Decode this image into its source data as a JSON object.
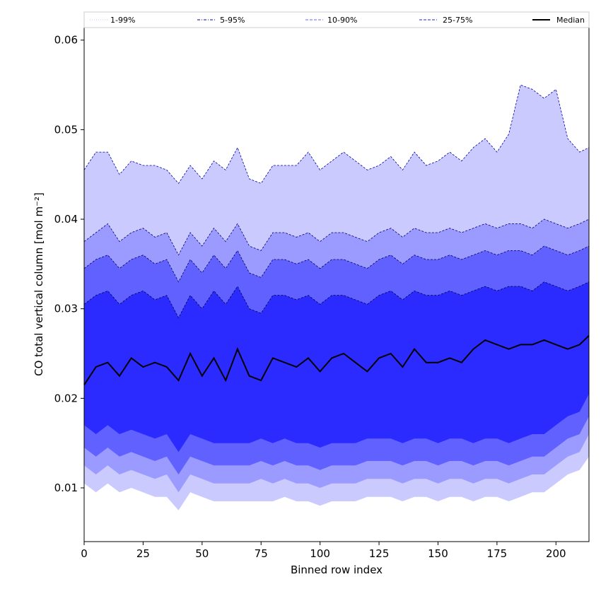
{
  "chart_data": {
    "type": "area",
    "title": "",
    "xlabel": "Binned row index",
    "ylabel": "CO total vertical column [mol m⁻²]",
    "xlim": [
      0,
      214
    ],
    "ylim": [
      0.004,
      0.0614
    ],
    "x_ticks": [
      0,
      25,
      50,
      75,
      100,
      125,
      150,
      175,
      200
    ],
    "y_ticks": [
      0.01,
      0.02,
      0.03,
      0.04,
      0.05,
      0.06
    ],
    "y_tick_labels": [
      "0.01",
      "0.02",
      "0.03",
      "0.04",
      "0.05",
      "0.06"
    ],
    "grid": false,
    "legend_position": "top",
    "x_points": [
      0,
      5,
      10,
      15,
      20,
      25,
      30,
      35,
      40,
      45,
      50,
      55,
      60,
      65,
      70,
      75,
      80,
      85,
      90,
      95,
      100,
      105,
      110,
      115,
      120,
      125,
      130,
      135,
      140,
      145,
      150,
      155,
      160,
      165,
      170,
      175,
      180,
      185,
      190,
      195,
      200,
      205,
      210,
      214
    ],
    "legend": [
      {
        "label": "1-99%",
        "color": "#c8c8ff",
        "style": "dotted"
      },
      {
        "label": "5-95%",
        "color": "#0000aa",
        "style": "dashdot"
      },
      {
        "label": "10-90%",
        "color": "#6666ff",
        "style": "dashed"
      },
      {
        "label": "25-75%",
        "color": "#2222dd",
        "style": "dashed"
      },
      {
        "label": "Median",
        "color": "#000000",
        "style": "solid"
      }
    ],
    "bands": [
      {
        "name": "1-99%",
        "fill": "#cacaff",
        "upper": [
          0.0455,
          0.0475,
          0.0475,
          0.045,
          0.0465,
          0.046,
          0.046,
          0.0455,
          0.044,
          0.046,
          0.0445,
          0.0465,
          0.0455,
          0.048,
          0.0445,
          0.044,
          0.046,
          0.046,
          0.046,
          0.0475,
          0.0455,
          0.0465,
          0.0475,
          0.0465,
          0.0455,
          0.046,
          0.047,
          0.0455,
          0.0475,
          0.046,
          0.0465,
          0.0475,
          0.0465,
          0.048,
          0.049,
          0.0475,
          0.0495,
          0.055,
          0.0545,
          0.0535,
          0.0545,
          0.049,
          0.0475,
          0.048
        ],
        "lower": [
          0.0105,
          0.0095,
          0.0105,
          0.0095,
          0.01,
          0.0095,
          0.009,
          0.009,
          0.0075,
          0.0095,
          0.009,
          0.0085,
          0.0085,
          0.0085,
          0.0085,
          0.0085,
          0.0085,
          0.009,
          0.0085,
          0.0085,
          0.008,
          0.0085,
          0.0085,
          0.0085,
          0.009,
          0.009,
          0.009,
          0.0085,
          0.009,
          0.009,
          0.0085,
          0.009,
          0.009,
          0.0085,
          0.009,
          0.009,
          0.0085,
          0.009,
          0.0095,
          0.0095,
          0.0105,
          0.0115,
          0.012,
          0.0135
        ]
      },
      {
        "name": "5-95%",
        "fill": "#9b9bff",
        "upper": [
          0.0375,
          0.0385,
          0.0395,
          0.0375,
          0.0385,
          0.039,
          0.038,
          0.0385,
          0.036,
          0.0385,
          0.037,
          0.039,
          0.0375,
          0.0395,
          0.037,
          0.0365,
          0.0385,
          0.0385,
          0.038,
          0.0385,
          0.0375,
          0.0385,
          0.0385,
          0.038,
          0.0375,
          0.0385,
          0.039,
          0.038,
          0.039,
          0.0385,
          0.0385,
          0.039,
          0.0385,
          0.039,
          0.0395,
          0.039,
          0.0395,
          0.0395,
          0.039,
          0.04,
          0.0395,
          0.039,
          0.0395,
          0.04
        ],
        "lower": [
          0.0125,
          0.0115,
          0.0125,
          0.0115,
          0.012,
          0.0115,
          0.011,
          0.0115,
          0.0095,
          0.0115,
          0.011,
          0.0105,
          0.0105,
          0.0105,
          0.0105,
          0.011,
          0.0105,
          0.011,
          0.0105,
          0.0105,
          0.01,
          0.0105,
          0.0105,
          0.0105,
          0.011,
          0.011,
          0.011,
          0.0105,
          0.011,
          0.011,
          0.0105,
          0.011,
          0.011,
          0.0105,
          0.011,
          0.011,
          0.0105,
          0.011,
          0.0115,
          0.0115,
          0.0125,
          0.0135,
          0.014,
          0.016
        ]
      },
      {
        "name": "10-90%",
        "fill": "#6161ff",
        "upper": [
          0.0345,
          0.0355,
          0.036,
          0.0345,
          0.0355,
          0.036,
          0.035,
          0.0355,
          0.033,
          0.0355,
          0.034,
          0.036,
          0.0345,
          0.0365,
          0.034,
          0.0335,
          0.0355,
          0.0355,
          0.035,
          0.0355,
          0.0345,
          0.0355,
          0.0355,
          0.035,
          0.0345,
          0.0355,
          0.036,
          0.035,
          0.036,
          0.0355,
          0.0355,
          0.036,
          0.0355,
          0.036,
          0.0365,
          0.036,
          0.0365,
          0.0365,
          0.036,
          0.037,
          0.0365,
          0.036,
          0.0365,
          0.037
        ],
        "lower": [
          0.0145,
          0.0135,
          0.0145,
          0.0135,
          0.014,
          0.0135,
          0.013,
          0.0135,
          0.0115,
          0.0135,
          0.013,
          0.0125,
          0.0125,
          0.0125,
          0.0125,
          0.013,
          0.0125,
          0.013,
          0.0125,
          0.0125,
          0.012,
          0.0125,
          0.0125,
          0.0125,
          0.013,
          0.013,
          0.013,
          0.0125,
          0.013,
          0.013,
          0.0125,
          0.013,
          0.013,
          0.0125,
          0.013,
          0.013,
          0.0125,
          0.013,
          0.0135,
          0.0135,
          0.0145,
          0.0155,
          0.016,
          0.018
        ]
      },
      {
        "name": "25-75%",
        "fill": "#2b2bff",
        "upper": [
          0.0305,
          0.0315,
          0.032,
          0.0305,
          0.0315,
          0.032,
          0.031,
          0.0315,
          0.029,
          0.0315,
          0.03,
          0.032,
          0.0305,
          0.0325,
          0.03,
          0.0295,
          0.0315,
          0.0315,
          0.031,
          0.0315,
          0.0305,
          0.0315,
          0.0315,
          0.031,
          0.0305,
          0.0315,
          0.032,
          0.031,
          0.032,
          0.0315,
          0.0315,
          0.032,
          0.0315,
          0.032,
          0.0325,
          0.032,
          0.0325,
          0.0325,
          0.032,
          0.033,
          0.0325,
          0.032,
          0.0325,
          0.033
        ],
        "lower": [
          0.017,
          0.016,
          0.017,
          0.016,
          0.0165,
          0.016,
          0.0155,
          0.016,
          0.014,
          0.016,
          0.0155,
          0.015,
          0.015,
          0.015,
          0.015,
          0.0155,
          0.015,
          0.0155,
          0.015,
          0.015,
          0.0145,
          0.015,
          0.015,
          0.015,
          0.0155,
          0.0155,
          0.0155,
          0.015,
          0.0155,
          0.0155,
          0.015,
          0.0155,
          0.0155,
          0.015,
          0.0155,
          0.0155,
          0.015,
          0.0155,
          0.016,
          0.016,
          0.017,
          0.018,
          0.0185,
          0.0205
        ]
      }
    ],
    "series": [
      {
        "name": "Median",
        "color": "#000000",
        "values": [
          0.0215,
          0.0235,
          0.024,
          0.0225,
          0.0245,
          0.0235,
          0.024,
          0.0235,
          0.022,
          0.025,
          0.0225,
          0.0245,
          0.022,
          0.0255,
          0.0225,
          0.022,
          0.0245,
          0.024,
          0.0235,
          0.0245,
          0.023,
          0.0245,
          0.025,
          0.024,
          0.023,
          0.0245,
          0.025,
          0.0235,
          0.0255,
          0.024,
          0.024,
          0.0245,
          0.024,
          0.0255,
          0.0265,
          0.026,
          0.0255,
          0.026,
          0.026,
          0.0265,
          0.026,
          0.0255,
          0.026,
          0.027
        ]
      }
    ]
  }
}
